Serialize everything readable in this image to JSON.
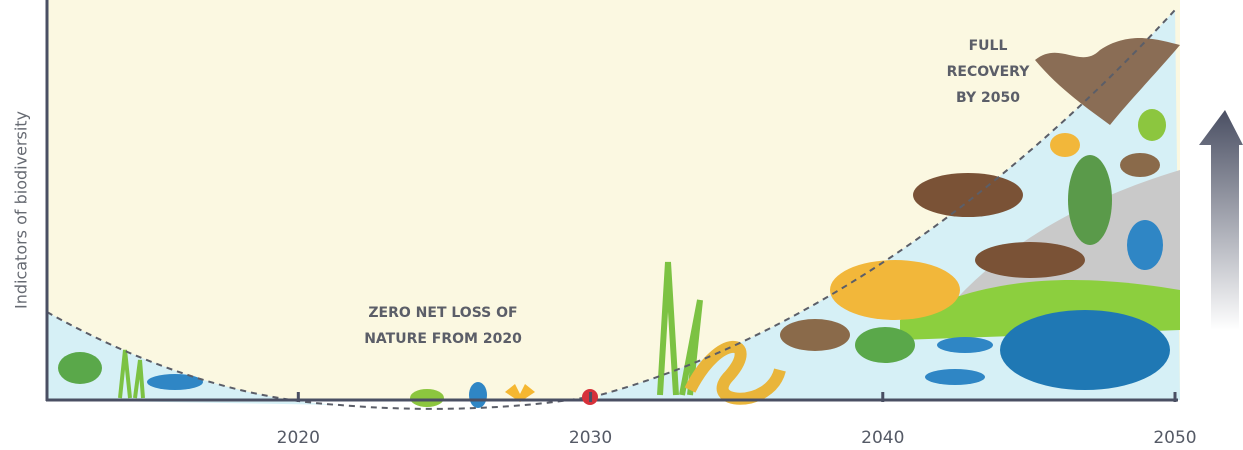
{
  "chart_data": {
    "type": "timeline",
    "y_label": "Indicators of biodiversity",
    "xlim": [
      2011.4,
      2050
    ],
    "xticks": [
      2020,
      2030,
      2040,
      2050
    ],
    "annotations": [
      {
        "lines": [
          "ZERO NET LOSS OF",
          "NATURE FROM 2020"
        ]
      },
      {
        "lines": [
          "FULL",
          "RECOVERY",
          "BY 2050"
        ]
      }
    ]
  }
}
